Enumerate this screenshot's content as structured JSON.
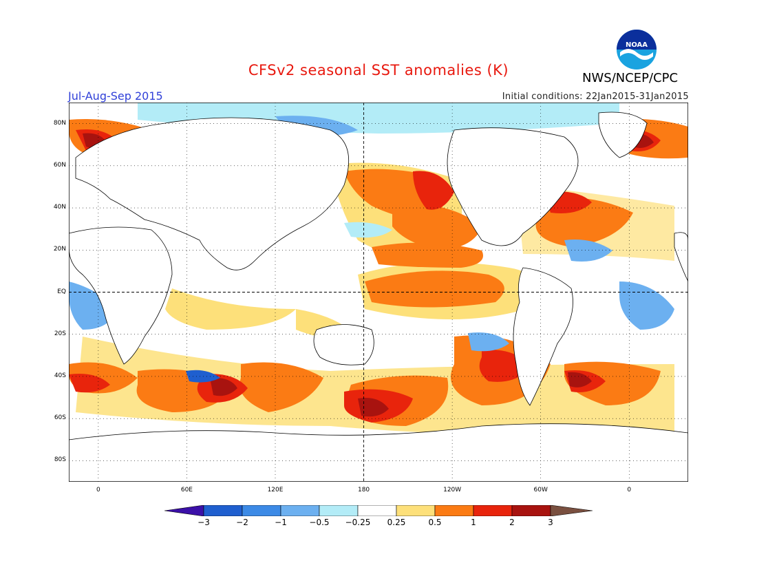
{
  "header": {
    "title": "CFSv2 seasonal SST anomalies (K)",
    "season": "Jul-Aug-Sep 2015",
    "initial_conditions": "Initial conditions: 22Jan2015-31Jan2015",
    "agency": "NWS/NCEP/CPC",
    "logo_text": "NOAA"
  },
  "map": {
    "projection": "equirectangular",
    "lon_range": [
      -20,
      400
    ],
    "lat_range": [
      -90,
      90
    ],
    "center_meridian_label": "180",
    "equator_label": "EQ",
    "lat_ticks": [
      {
        "value": 80,
        "label": "80N"
      },
      {
        "value": 60,
        "label": "60N"
      },
      {
        "value": 40,
        "label": "40N"
      },
      {
        "value": 20,
        "label": "20N"
      },
      {
        "value": 0,
        "label": "EQ"
      },
      {
        "value": -20,
        "label": "20S"
      },
      {
        "value": -40,
        "label": "40S"
      },
      {
        "value": -60,
        "label": "60S"
      },
      {
        "value": -80,
        "label": "80S"
      }
    ],
    "lon_ticks": [
      {
        "value": 0,
        "label": "0"
      },
      {
        "value": 60,
        "label": "60E"
      },
      {
        "value": 120,
        "label": "120E"
      },
      {
        "value": 180,
        "label": "180"
      },
      {
        "value": 240,
        "label": "120W"
      },
      {
        "value": 300,
        "label": "60W"
      },
      {
        "value": 360,
        "label": "0"
      }
    ]
  },
  "colorbar": {
    "levels": [
      "-3",
      "-2",
      "-1",
      "-0.5",
      "-0.25",
      "0.25",
      "0.5",
      "1",
      "2",
      "3"
    ],
    "colors": [
      "#3b10a8",
      "#1f5fcf",
      "#3c8ae6",
      "#6cb0f0",
      "#b3ecf7",
      "#ffffff",
      "#fde07a",
      "#fb7b14",
      "#e8240c",
      "#a8130f",
      "#7a5040"
    ]
  }
}
